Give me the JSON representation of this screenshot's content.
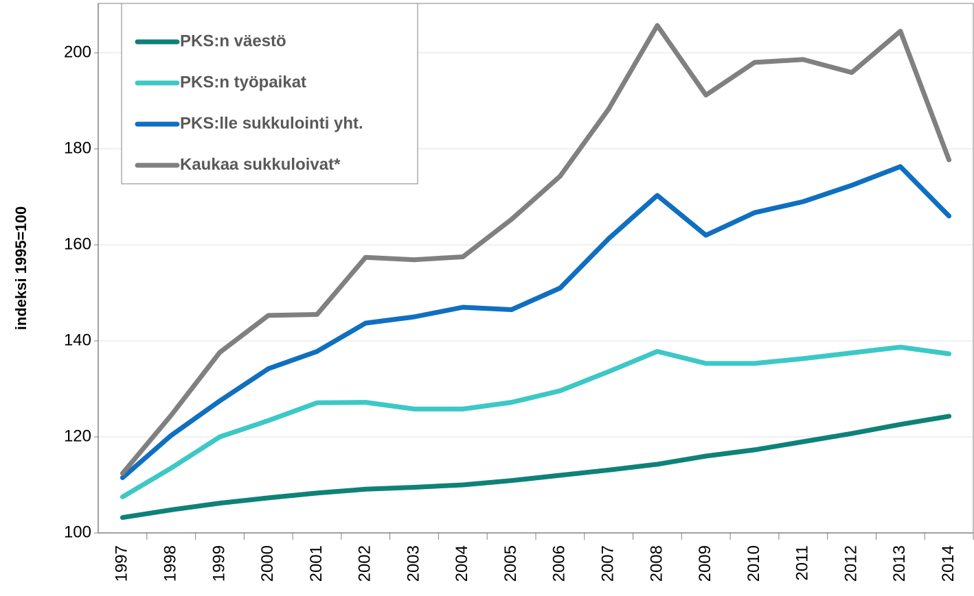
{
  "chart_data": {
    "type": "line",
    "y_label": "indeksi 1995=100",
    "categories": [
      "1997",
      "1998",
      "1999",
      "2000",
      "2001",
      "2002",
      "2003",
      "2004",
      "2005",
      "2006",
      "2007",
      "2008",
      "2009",
      "2010",
      "2011",
      "2012",
      "2013",
      "2014"
    ],
    "series": [
      {
        "name": "PKS:n väestö",
        "color": "#0e8278",
        "values": [
          103.2,
          104.8,
          106.2,
          107.3,
          108.3,
          109.1,
          109.5,
          110,
          110.9,
          112,
          113.1,
          114.3,
          116,
          117.3,
          119,
          120.7,
          122.6,
          124.3
        ]
      },
      {
        "name": "PKS:n työpaikat",
        "color": "#3cc8c6",
        "values": [
          107.5,
          113.5,
          120,
          123.4,
          127.1,
          127.2,
          125.8,
          125.8,
          127.2,
          129.6,
          133.6,
          137.8,
          135.3,
          135.3,
          136.3,
          137.5,
          138.7,
          137.3
        ]
      },
      {
        "name": "PKS:lle sukkulointi yht.",
        "color": "#0f6fc0",
        "values": [
          111.5,
          120.3,
          127.5,
          134.2,
          137.8,
          143.7,
          145,
          147,
          146.5,
          151,
          161.3,
          170.3,
          162,
          166.7,
          169,
          172.4,
          176.3,
          166
        ]
      },
      {
        "name": "Kaukaa sukkuloivat*",
        "color": "#808080",
        "values": [
          112.4,
          124.5,
          137.6,
          145.3,
          145.5,
          157.4,
          156.9,
          157.5,
          165.3,
          174.3,
          188.3,
          205.7,
          191.2,
          198,
          198.6,
          195.9,
          204.5,
          177.7
        ]
      }
    ],
    "ylim": [
      100,
      210
    ],
    "yticks": [
      100,
      120,
      140,
      160,
      180,
      200
    ],
    "grid": true,
    "legend": "top-left"
  }
}
